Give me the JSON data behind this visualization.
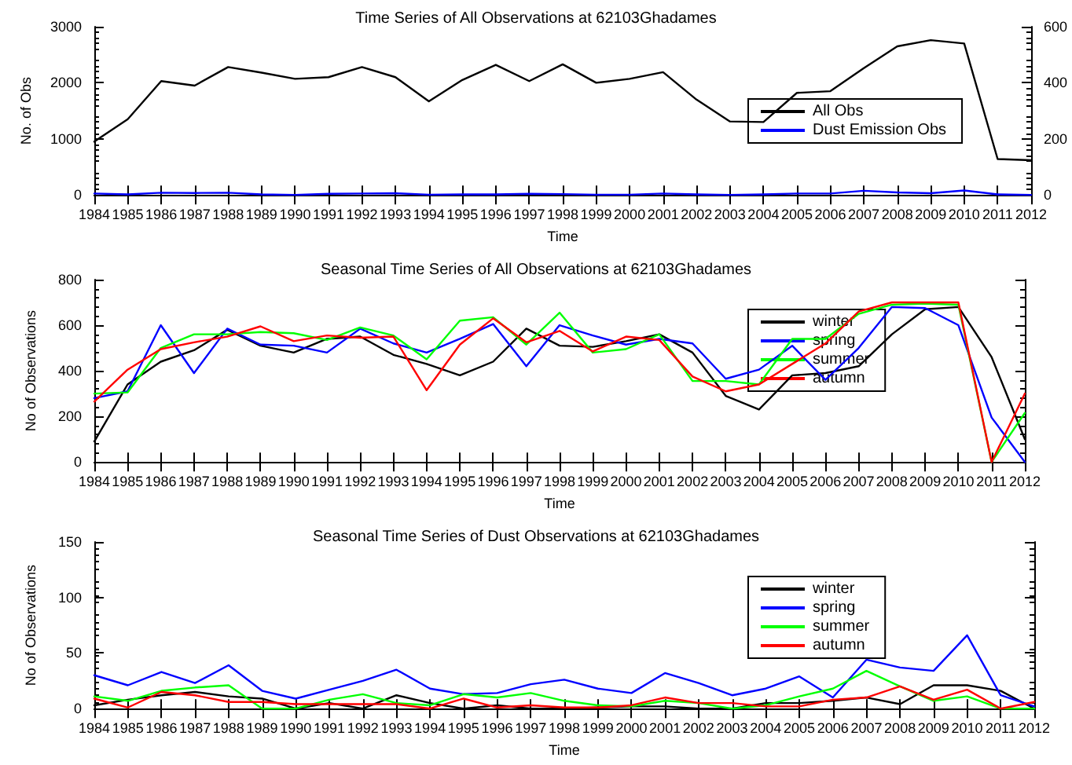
{
  "chart_data": [
    {
      "type": "line",
      "title": "Time Series of All Observations at 62103Ghadames",
      "xlabel": "Time",
      "ylabel": "No. of Obs",
      "x": [
        1984,
        1985,
        1986,
        1987,
        1988,
        1989,
        1990,
        1991,
        1992,
        1993,
        1994,
        1995,
        1996,
        1997,
        1998,
        1999,
        2000,
        2001,
        2002,
        2003,
        2004,
        2005,
        2006,
        2007,
        2008,
        2009,
        2010,
        2011,
        2012
      ],
      "xlim": [
        1984,
        2012
      ],
      "xticks": [
        1984,
        1985,
        1986,
        1987,
        1988,
        1989,
        1990,
        1991,
        1992,
        1993,
        1994,
        1995,
        1996,
        1997,
        1998,
        1999,
        2000,
        2001,
        2002,
        2003,
        2004,
        2005,
        2006,
        2007,
        2008,
        2009,
        2010,
        2011,
        2012
      ],
      "ylim": [
        0,
        3000
      ],
      "yticks": [
        0,
        1000,
        2000,
        3000
      ],
      "y2lim": [
        0,
        600
      ],
      "y2ticks": [
        0,
        200,
        400,
        600
      ],
      "legend": "right",
      "grid": false,
      "marker": "none",
      "line_style": "solid",
      "series": [
        {
          "name": "All Obs",
          "color": "#000000",
          "values": [
            950,
            1350,
            2030,
            1950,
            2280,
            2180,
            2070,
            2100,
            2280,
            2100,
            1670,
            2050,
            2320,
            2030,
            2330,
            2000,
            2070,
            2190,
            1700,
            1310,
            1300,
            1820,
            1850,
            2260,
            2650,
            2760,
            2700,
            640,
            620
          ]
        },
        {
          "name": "Dust Emission Obs",
          "color": "#0000ff",
          "axis": "y2",
          "values": [
            5,
            2,
            8,
            7,
            8,
            2,
            0,
            4,
            5,
            6,
            1,
            2,
            2,
            4,
            3,
            1,
            1,
            5,
            2,
            0,
            2,
            5,
            5,
            15,
            9,
            6,
            16,
            2,
            0
          ]
        }
      ]
    },
    {
      "type": "line",
      "title": "Seasonal Time Series of All Observations at 62103Ghadames",
      "xlabel": "Time",
      "ylabel": "No of Observations",
      "x": [
        1984,
        1985,
        1986,
        1987,
        1988,
        1989,
        1990,
        1991,
        1992,
        1993,
        1994,
        1995,
        1996,
        1997,
        1998,
        1999,
        2000,
        2001,
        2002,
        2003,
        2004,
        2005,
        2006,
        2007,
        2008,
        2009,
        2010,
        2011,
        2012
      ],
      "xlim": [
        1984,
        2012
      ],
      "xticks": [
        1984,
        1985,
        1986,
        1987,
        1988,
        1989,
        1990,
        1991,
        1992,
        1993,
        1994,
        1995,
        1996,
        1997,
        1998,
        1999,
        2000,
        2001,
        2002,
        2003,
        2004,
        2005,
        2006,
        2007,
        2008,
        2009,
        2010,
        2011,
        2012
      ],
      "ylim": [
        0,
        800
      ],
      "yticks": [
        0,
        200,
        400,
        600,
        800
      ],
      "legend": "top right",
      "grid": false,
      "marker": "none",
      "line_style": "solid",
      "series": [
        {
          "name": "winter",
          "color": "#000000",
          "values": [
            90,
            340,
            440,
            490,
            580,
            510,
            480,
            540,
            550,
            470,
            430,
            380,
            440,
            585,
            510,
            505,
            530,
            560,
            480,
            290,
            230,
            380,
            390,
            420,
            560,
            670,
            680,
            460,
            100
          ]
        },
        {
          "name": "spring",
          "color": "#0000ff",
          "values": [
            280,
            310,
            600,
            390,
            585,
            515,
            510,
            480,
            585,
            520,
            480,
            540,
            605,
            420,
            600,
            555,
            515,
            540,
            520,
            365,
            405,
            510,
            360,
            500,
            680,
            675,
            600,
            195,
            0
          ]
        },
        {
          "name": "summer",
          "color": "#00ff00",
          "values": [
            300,
            305,
            500,
            560,
            560,
            570,
            565,
            535,
            590,
            555,
            450,
            620,
            635,
            515,
            655,
            480,
            495,
            560,
            355,
            355,
            340,
            540,
            540,
            650,
            690,
            695,
            690,
            0,
            215
          ]
        },
        {
          "name": "autumn",
          "color": "#ff0000",
          "values": [
            265,
            405,
            495,
            525,
            550,
            595,
            530,
            555,
            545,
            550,
            315,
            515,
            630,
            525,
            575,
            485,
            550,
            535,
            375,
            310,
            340,
            430,
            520,
            660,
            700,
            700,
            700,
            0,
            300
          ]
        }
      ]
    },
    {
      "type": "line",
      "title": "Seasonal Time Series of Dust Observations at 62103Ghadames",
      "xlabel": "Time",
      "ylabel": "No of Observations",
      "x": [
        1984,
        1985,
        1986,
        1987,
        1988,
        1989,
        1990,
        1991,
        1992,
        1993,
        1994,
        1995,
        1996,
        1997,
        1998,
        1999,
        2000,
        2001,
        2002,
        2003,
        2004,
        2005,
        2006,
        2007,
        2008,
        2009,
        2010,
        2011,
        2012
      ],
      "xlim": [
        1984,
        2012
      ],
      "xticks": [
        1984,
        1985,
        1986,
        1987,
        1988,
        1989,
        1990,
        1991,
        1992,
        1993,
        1994,
        1995,
        1996,
        1997,
        1998,
        1999,
        2000,
        2001,
        2002,
        2003,
        2004,
        2005,
        2006,
        2007,
        2008,
        2009,
        2010,
        2011,
        2012
      ],
      "ylim": [
        0,
        150
      ],
      "yticks": [
        0,
        50,
        100,
        150
      ],
      "legend": "top right",
      "grid": false,
      "marker": "none",
      "line_style": "solid",
      "series": [
        {
          "name": "winter",
          "color": "#000000",
          "values": [
            3,
            8,
            12,
            15,
            11,
            9,
            0,
            5,
            0,
            12,
            5,
            0,
            3,
            0,
            0,
            1,
            2,
            2,
            0,
            0,
            5,
            5,
            7,
            10,
            4,
            21,
            21,
            16,
            0
          ]
        },
        {
          "name": "spring",
          "color": "#0000ff",
          "values": [
            30,
            21,
            33,
            23,
            39,
            16,
            9,
            17,
            25,
            35,
            18,
            13,
            14,
            22,
            26,
            18,
            14,
            32,
            23,
            12,
            18,
            29,
            10,
            44,
            37,
            34,
            66,
            12,
            2
          ]
        },
        {
          "name": "summer",
          "color": "#00ff00",
          "values": [
            11,
            7,
            16,
            19,
            21,
            0,
            0,
            8,
            13,
            5,
            3,
            13,
            10,
            14,
            7,
            3,
            2,
            7,
            5,
            0,
            3,
            11,
            18,
            34,
            20,
            7,
            11,
            0,
            0
          ]
        },
        {
          "name": "autumn",
          "color": "#ff0000",
          "values": [
            9,
            1,
            15,
            12,
            6,
            6,
            4,
            4,
            4,
            4,
            0,
            9,
            1,
            3,
            1,
            1,
            3,
            10,
            5,
            5,
            2,
            2,
            8,
            10,
            20,
            8,
            17,
            0,
            6
          ]
        }
      ]
    }
  ]
}
